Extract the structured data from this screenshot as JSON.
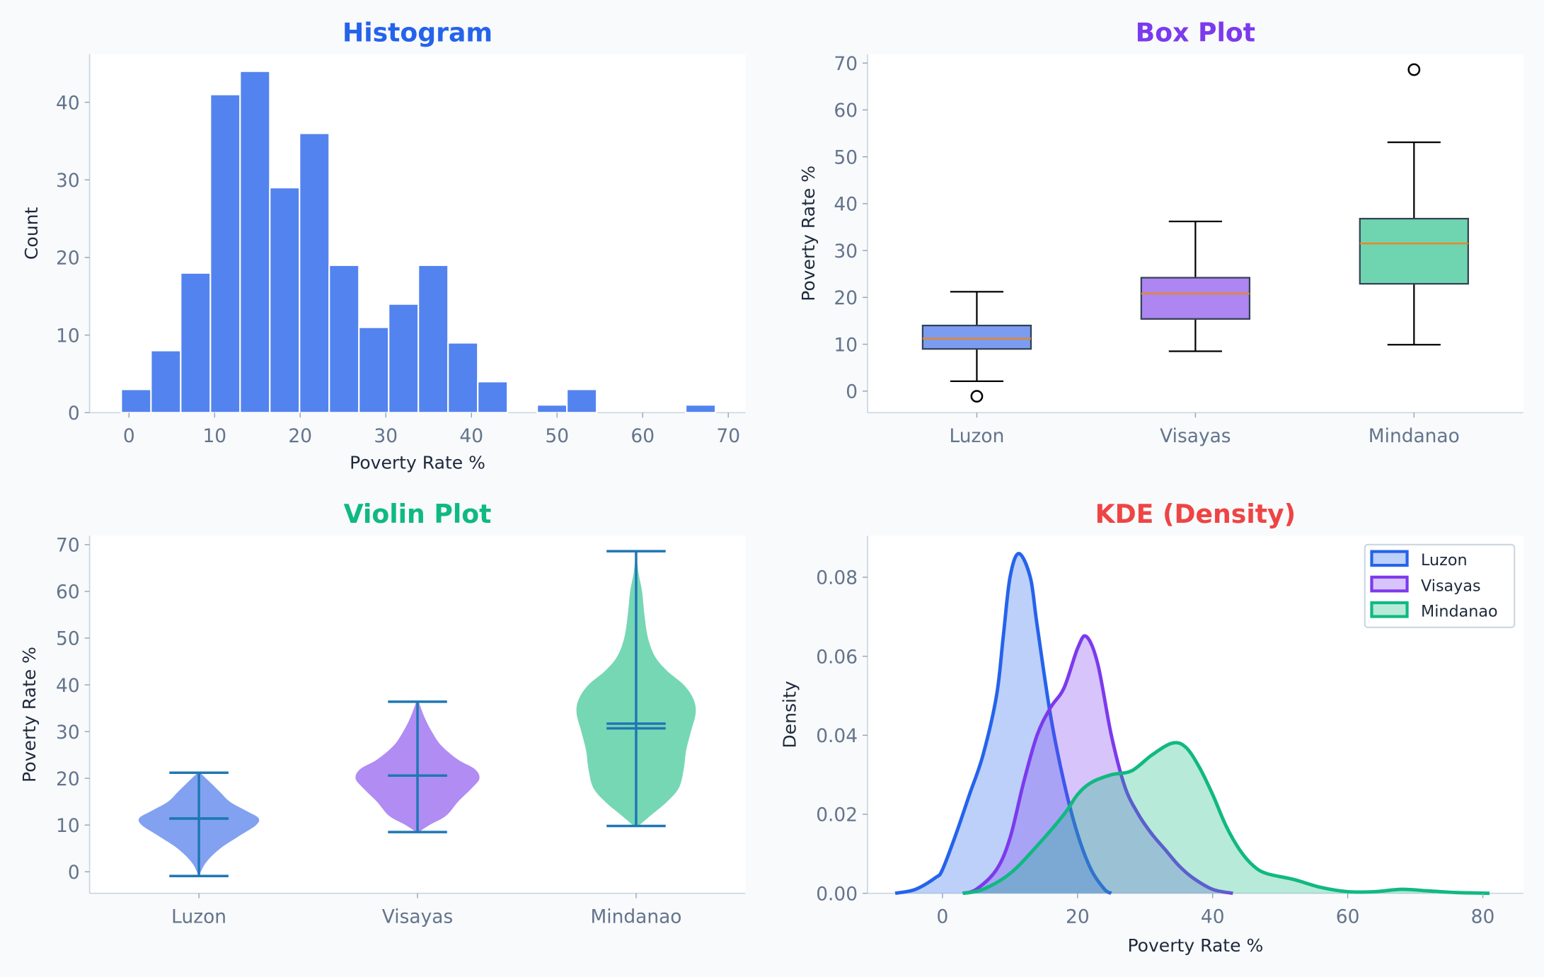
{
  "chart_data": [
    {
      "type": "bar",
      "title": "Histogram",
      "title_color": "#2563eb",
      "xlabel": "Poverty Rate %",
      "ylabel": "Count",
      "bin_start": -0.9,
      "bin_width": 3.47,
      "values": [
        3,
        8,
        18,
        41,
        44,
        29,
        36,
        19,
        11,
        14,
        19,
        9,
        4,
        0,
        1,
        3,
        0,
        0,
        0,
        1
      ],
      "xlim": [
        -4.6,
        72
      ],
      "ylim": [
        0,
        46.2
      ],
      "xticks": [
        "0",
        "10",
        "20",
        "30",
        "40",
        "50",
        "60",
        "70"
      ],
      "yticks": [
        "0",
        "10",
        "20",
        "30",
        "40"
      ],
      "color": "#5383ee",
      "grid": false
    },
    {
      "type": "box",
      "title": "Box Plot",
      "title_color": "#7c3aed",
      "ylabel": "Poverty Rate %",
      "categories": [
        "Luzon",
        "Visayas",
        "Mindanao"
      ],
      "boxes": [
        {
          "whislo": 2.1,
          "q1": 9.0,
          "med": 11.2,
          "q3": 14.0,
          "whishi": 21.2,
          "fliers": [
            -1.1
          ]
        },
        {
          "whislo": 8.5,
          "q1": 15.4,
          "med": 20.8,
          "q3": 24.2,
          "whishi": 36.2,
          "fliers": []
        },
        {
          "whislo": 9.9,
          "q1": 22.9,
          "med": 31.5,
          "q3": 36.8,
          "whishi": 53.1,
          "fliers": [
            68.6
          ]
        }
      ],
      "colors": [
        "#7b9cf0",
        "#ad86f1",
        "#6fd5b0"
      ],
      "median_color": "#e6862a",
      "ylim": [
        -4.6,
        71.9
      ],
      "yticks": [
        "0",
        "10",
        "20",
        "30",
        "40",
        "50",
        "60",
        "70"
      ],
      "grid": false
    },
    {
      "type": "violin",
      "title": "Violin Plot",
      "title_color": "#10b981",
      "ylabel": "Poverty Rate %",
      "categories": [
        "Luzon",
        "Visayas",
        "Mindanao"
      ],
      "violins": [
        {
          "min": -0.9,
          "max": 21.2,
          "mean": 11.4,
          "median": 11.4,
          "profile": [
            [
              -0.9,
              0
            ],
            [
              2,
              0.03
            ],
            [
              5,
              0.09
            ],
            [
              8,
              0.18
            ],
            [
              10,
              0.24
            ],
            [
              11.5,
              0.25
            ],
            [
              13,
              0.2
            ],
            [
              15,
              0.13
            ],
            [
              17,
              0.09
            ],
            [
              19,
              0.05
            ],
            [
              21.2,
              0.005
            ]
          ]
        },
        {
          "min": 8.5,
          "max": 36.4,
          "mean": 20.6,
          "median": 20.6,
          "profile": [
            [
              8.5,
              0.005
            ],
            [
              10,
              0.05
            ],
            [
              12,
              0.12
            ],
            [
              15,
              0.17
            ],
            [
              18,
              0.23
            ],
            [
              20,
              0.26
            ],
            [
              22,
              0.24
            ],
            [
              24,
              0.17
            ],
            [
              27,
              0.1
            ],
            [
              30,
              0.06
            ],
            [
              33,
              0.03
            ],
            [
              36.4,
              0.005
            ]
          ]
        },
        {
          "min": 9.8,
          "max": 68.6,
          "mean": 30.7,
          "median": 31.7,
          "profile": [
            [
              9.8,
              0.01
            ],
            [
              12,
              0.06
            ],
            [
              15,
              0.13
            ],
            [
              18,
              0.18
            ],
            [
              22,
              0.2
            ],
            [
              26,
              0.21
            ],
            [
              30,
              0.23
            ],
            [
              34,
              0.25
            ],
            [
              37,
              0.24
            ],
            [
              40,
              0.2
            ],
            [
              43,
              0.13
            ],
            [
              46,
              0.08
            ],
            [
              50,
              0.05
            ],
            [
              55,
              0.035
            ],
            [
              60,
              0.025
            ],
            [
              64,
              0.01
            ],
            [
              68.6,
              0
            ]
          ]
        }
      ],
      "colors": [
        "#7b9cf0",
        "#ad86f1",
        "#6fd5b0"
      ],
      "line_color": "#1f77b4",
      "ylim": [
        -4.6,
        71.9
      ],
      "yticks": [
        "0",
        "10",
        "20",
        "30",
        "40",
        "50",
        "60",
        "70"
      ],
      "grid": false
    },
    {
      "type": "area",
      "title": "KDE (Density)",
      "title_color": "#ef4444",
      "xlabel": "Poverty Rate %",
      "ylabel": "Density",
      "xlim": [
        -11.1,
        86
      ],
      "ylim": [
        0,
        0.0905
      ],
      "xticks": [
        "0",
        "20",
        "40",
        "60",
        "80"
      ],
      "yticks": [
        "0.00",
        "0.02",
        "0.04",
        "0.06",
        "0.08"
      ],
      "legend": "top-right",
      "grid": false,
      "series": [
        {
          "name": "Luzon",
          "color": "#2563eb",
          "fill": "#bccdf7",
          "x": [
            -7,
            -4,
            -1,
            0,
            2,
            4,
            6,
            8,
            9,
            10,
            11.3,
            13,
            14,
            16,
            18,
            20,
            22,
            24,
            25
          ],
          "y": [
            0,
            0.001,
            0.004,
            0.006,
            0.015,
            0.025,
            0.035,
            0.05,
            0.065,
            0.08,
            0.086,
            0.08,
            0.068,
            0.045,
            0.028,
            0.015,
            0.006,
            0.001,
            0
          ]
        },
        {
          "name": "Visayas",
          "color": "#7c3aed",
          "fill": "#d8c4f9",
          "x": [
            3,
            5,
            8,
            10,
            12,
            14,
            16,
            18,
            20,
            21.3,
            23,
            25,
            27,
            29,
            31,
            33,
            35,
            37,
            40,
            43
          ],
          "y": [
            0,
            0.001,
            0.006,
            0.014,
            0.028,
            0.04,
            0.047,
            0.052,
            0.062,
            0.065,
            0.058,
            0.04,
            0.027,
            0.02,
            0.015,
            0.011,
            0.007,
            0.004,
            0.001,
            0
          ]
        },
        {
          "name": "Mindanao",
          "color": "#10b981",
          "fill": "#b3e9d6",
          "x": [
            3,
            6,
            10,
            14,
            18,
            20,
            22,
            25,
            28,
            31,
            34,
            36,
            38,
            40,
            42,
            44,
            46,
            48,
            52,
            56,
            60,
            64,
            68,
            72,
            76,
            81
          ],
          "y": [
            0,
            0.001,
            0.005,
            0.012,
            0.02,
            0.025,
            0.028,
            0.03,
            0.031,
            0.035,
            0.038,
            0.037,
            0.032,
            0.025,
            0.017,
            0.011,
            0.007,
            0.005,
            0.0035,
            0.0015,
            0.0004,
            0.0004,
            0.001,
            0.0006,
            0.0002,
            0
          ]
        }
      ]
    }
  ]
}
